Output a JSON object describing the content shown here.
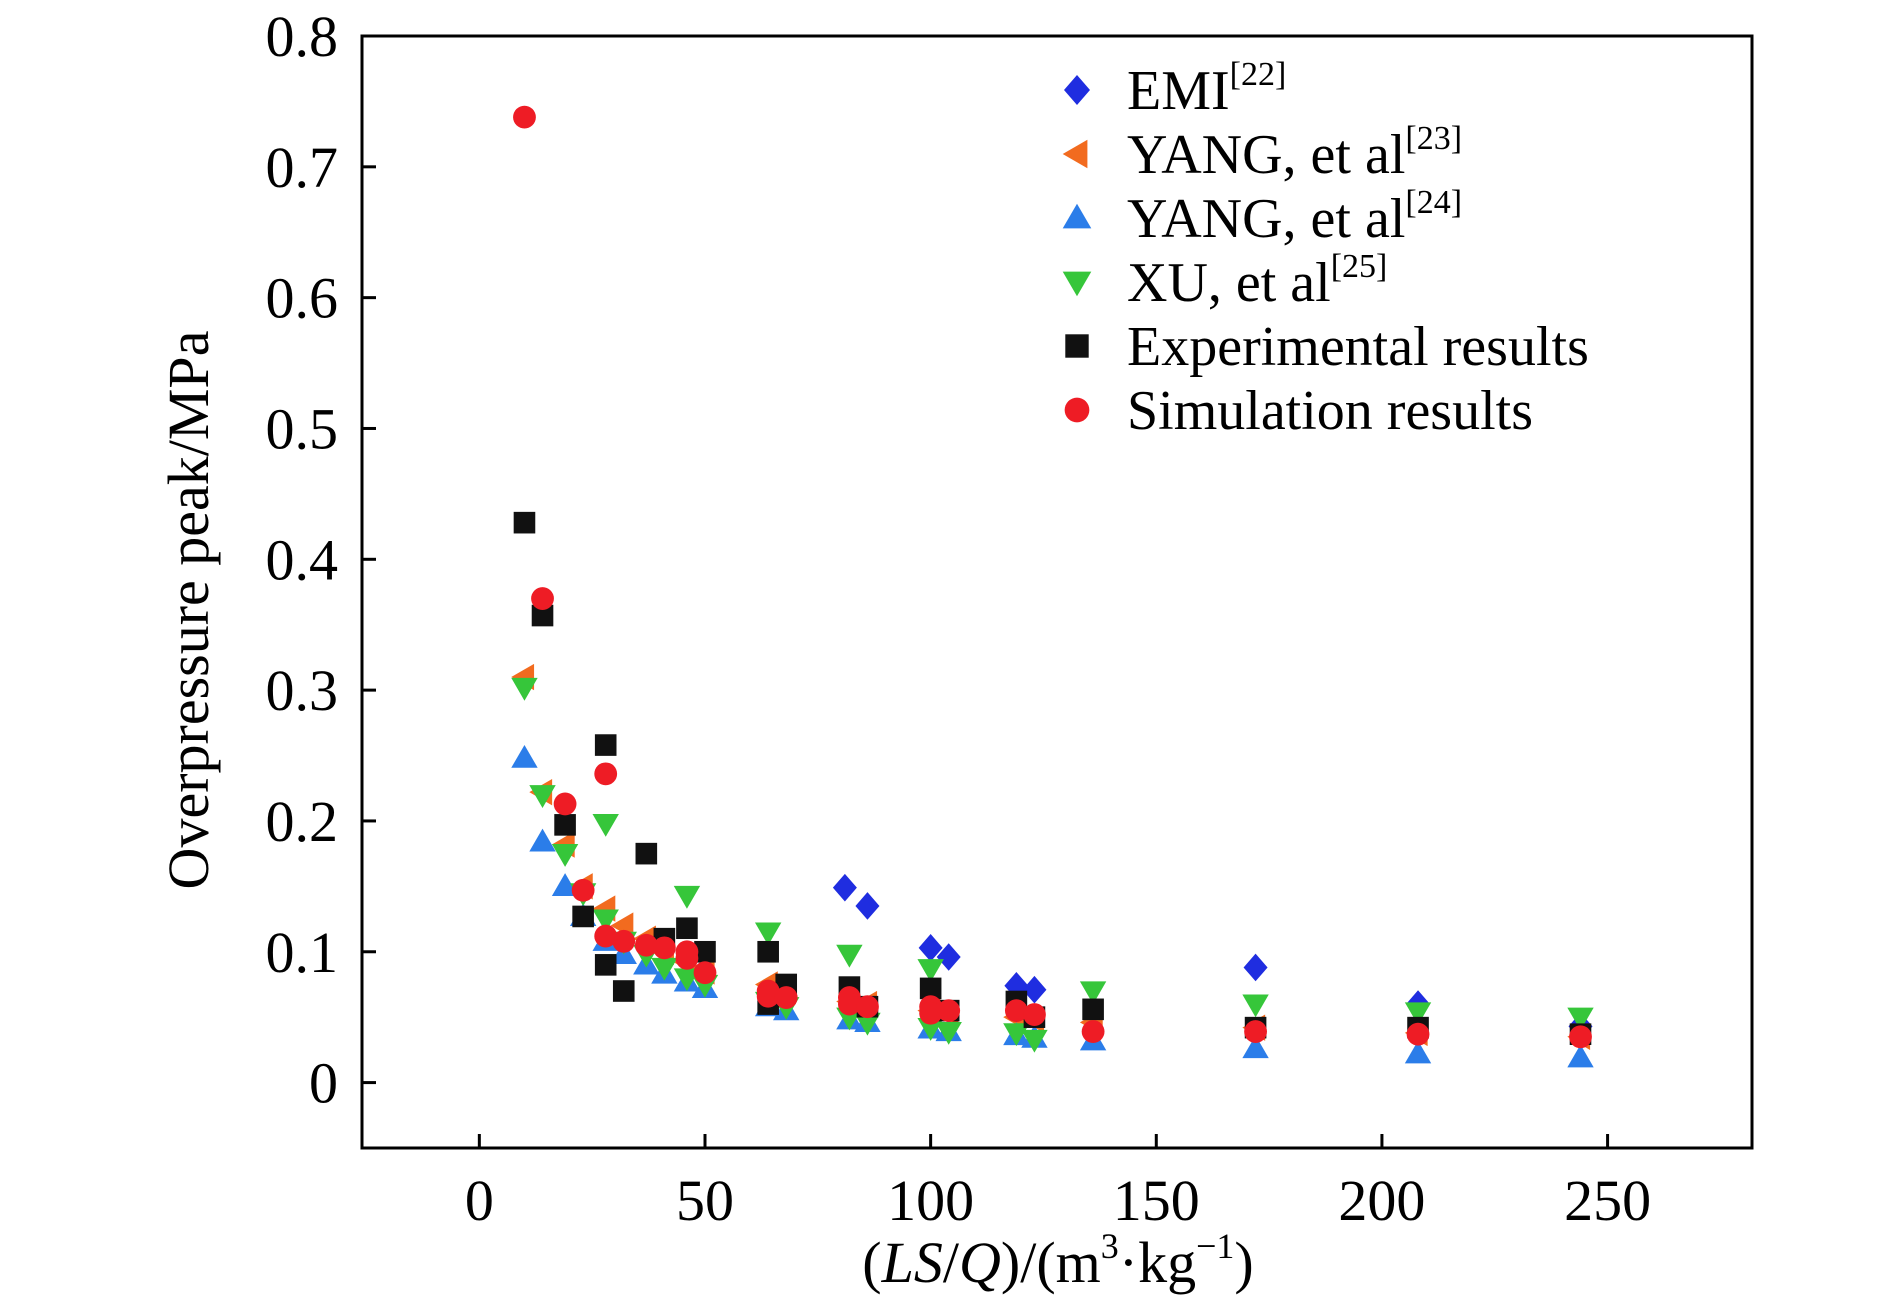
{
  "chart_data": {
    "type": "scatter",
    "xlabel": {
      "pre": "(",
      "ls": "LS",
      "slash": "/",
      "q": "Q",
      "post1": ")/(m",
      "sup1": "3",
      "mid": "·kg",
      "sup2": "−1",
      "post2": ")"
    },
    "ylabel": "Overpressure peak/MPa",
    "xlim": [
      -26,
      282
    ],
    "ylim": [
      -0.05,
      0.8
    ],
    "xticks": [
      0,
      50,
      100,
      150,
      200,
      250
    ],
    "xtick_labels": [
      "0",
      "50",
      "100",
      "150",
      "200",
      "250"
    ],
    "yticks": [
      0,
      0.1,
      0.2,
      0.3,
      0.4,
      0.5,
      0.6,
      0.7,
      0.8
    ],
    "ytick_labels": [
      "0",
      "0.1",
      "0.2",
      "0.3",
      "0.4",
      "0.5",
      "0.6",
      "0.7",
      "0.8"
    ],
    "grid": false,
    "legend_position": "top-right",
    "series": [
      {
        "name": "EMI",
        "cite": "[22]",
        "marker": "diamond",
        "color": "#1f2de0",
        "points": [
          [
            81,
            0.149
          ],
          [
            86,
            0.135
          ],
          [
            100,
            0.103
          ],
          [
            104,
            0.096
          ],
          [
            119,
            0.074
          ],
          [
            123,
            0.071
          ],
          [
            172,
            0.088
          ],
          [
            208,
            0.06
          ],
          [
            244,
            0.043
          ]
        ]
      },
      {
        "name": "YANG, et al",
        "cite": "[23]",
        "marker": "triangle-left",
        "color": "#f26b1f",
        "points": [
          [
            10,
            0.31
          ],
          [
            14,
            0.222
          ],
          [
            19,
            0.182
          ],
          [
            23,
            0.15
          ],
          [
            28,
            0.133
          ],
          [
            32,
            0.12
          ],
          [
            37,
            0.11
          ],
          [
            41,
            0.1
          ],
          [
            46,
            0.092
          ],
          [
            50,
            0.085
          ],
          [
            64,
            0.075
          ],
          [
            68,
            0.07
          ],
          [
            82,
            0.062
          ],
          [
            86,
            0.06
          ],
          [
            100,
            0.055
          ],
          [
            104,
            0.052
          ],
          [
            119,
            0.05
          ],
          [
            123,
            0.048
          ],
          [
            136,
            0.046
          ],
          [
            172,
            0.042
          ],
          [
            208,
            0.038
          ],
          [
            244,
            0.035
          ]
        ]
      },
      {
        "name": "YANG, et al",
        "cite": "[24]",
        "marker": "triangle-up",
        "color": "#2b7de9",
        "points": [
          [
            10,
            0.248
          ],
          [
            14,
            0.184
          ],
          [
            19,
            0.15
          ],
          [
            23,
            0.127
          ],
          [
            28,
            0.108
          ],
          [
            32,
            0.098
          ],
          [
            37,
            0.09
          ],
          [
            41,
            0.083
          ],
          [
            46,
            0.077
          ],
          [
            50,
            0.072
          ],
          [
            64,
            0.058
          ],
          [
            68,
            0.055
          ],
          [
            82,
            0.048
          ],
          [
            86,
            0.046
          ],
          [
            100,
            0.041
          ],
          [
            104,
            0.039
          ],
          [
            119,
            0.036
          ],
          [
            123,
            0.034
          ],
          [
            136,
            0.032
          ],
          [
            172,
            0.026
          ],
          [
            208,
            0.022
          ],
          [
            244,
            0.019
          ]
        ]
      },
      {
        "name": "XU, et al",
        "cite": "[25]",
        "marker": "triangle-down",
        "color": "#36c63a",
        "points": [
          [
            10,
            0.302
          ],
          [
            14,
            0.22
          ],
          [
            19,
            0.175
          ],
          [
            23,
            0.145
          ],
          [
            28,
            0.198
          ],
          [
            28,
            0.125
          ],
          [
            32,
            0.108
          ],
          [
            37,
            0.098
          ],
          [
            41,
            0.088
          ],
          [
            46,
            0.143
          ],
          [
            46,
            0.08
          ],
          [
            50,
            0.075
          ],
          [
            64,
            0.115
          ],
          [
            64,
            0.062
          ],
          [
            68,
            0.058
          ],
          [
            82,
            0.098
          ],
          [
            82,
            0.05
          ],
          [
            86,
            0.046
          ],
          [
            100,
            0.087
          ],
          [
            100,
            0.042
          ],
          [
            104,
            0.039
          ],
          [
            119,
            0.038
          ],
          [
            123,
            0.033
          ],
          [
            136,
            0.07
          ],
          [
            172,
            0.06
          ],
          [
            208,
            0.054
          ],
          [
            244,
            0.05
          ]
        ]
      },
      {
        "name": "Experimental results",
        "cite": "",
        "marker": "square",
        "color": "#111111",
        "points": [
          [
            10,
            0.428
          ],
          [
            14,
            0.357
          ],
          [
            19,
            0.197
          ],
          [
            23,
            0.127
          ],
          [
            28,
            0.258
          ],
          [
            28,
            0.09
          ],
          [
            32,
            0.07
          ],
          [
            37,
            0.175
          ],
          [
            41,
            0.11
          ],
          [
            46,
            0.118
          ],
          [
            50,
            0.1
          ],
          [
            64,
            0.1
          ],
          [
            64,
            0.06
          ],
          [
            68,
            0.075
          ],
          [
            82,
            0.073
          ],
          [
            86,
            0.058
          ],
          [
            100,
            0.072
          ],
          [
            104,
            0.055
          ],
          [
            119,
            0.062
          ],
          [
            123,
            0.05
          ],
          [
            136,
            0.056
          ],
          [
            172,
            0.042
          ],
          [
            208,
            0.042
          ],
          [
            244,
            0.037
          ]
        ]
      },
      {
        "name": "Simulation results",
        "cite": "",
        "marker": "circle",
        "color": "#ee1c25",
        "points": [
          [
            10,
            0.738
          ],
          [
            14,
            0.37
          ],
          [
            19,
            0.213
          ],
          [
            23,
            0.147
          ],
          [
            28,
            0.236
          ],
          [
            28,
            0.112
          ],
          [
            32,
            0.108
          ],
          [
            37,
            0.105
          ],
          [
            41,
            0.103
          ],
          [
            46,
            0.1
          ],
          [
            46,
            0.095
          ],
          [
            50,
            0.084
          ],
          [
            64,
            0.07
          ],
          [
            64,
            0.066
          ],
          [
            68,
            0.065
          ],
          [
            82,
            0.065
          ],
          [
            82,
            0.06
          ],
          [
            86,
            0.058
          ],
          [
            100,
            0.058
          ],
          [
            100,
            0.053
          ],
          [
            104,
            0.055
          ],
          [
            119,
            0.055
          ],
          [
            123,
            0.052
          ],
          [
            136,
            0.039
          ],
          [
            172,
            0.039
          ],
          [
            208,
            0.037
          ],
          [
            244,
            0.035
          ]
        ]
      }
    ]
  }
}
